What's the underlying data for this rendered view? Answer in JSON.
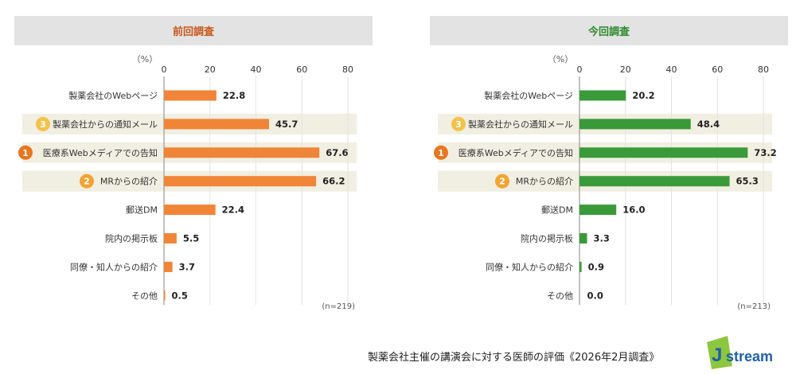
{
  "footer": "製薬会社主催の講演会に対する医師の評価《2026年2月調査》",
  "logo_text": "Jstream",
  "colors": {
    "previous": "#f08537",
    "current": "#3a9a3a",
    "rank1": "#e8761e",
    "rank2": "#f2a332",
    "rank3": "#f3c24a",
    "highlight": "#f1efe2"
  },
  "chart_data": [
    {
      "type": "bar",
      "orientation": "horizontal",
      "title": "前回調査",
      "unit": "（%）",
      "n": "(n=219)",
      "xlim": [
        0,
        80
      ],
      "xticks": [
        "0",
        "20",
        "40",
        "60",
        "80"
      ],
      "grid": true,
      "categories": [
        "製薬会社のWebページ",
        "製薬会社からの通知メール",
        "医療系Webメディアでの告知",
        "MRからの紹介",
        "郵送DM",
        "院内の掲示板",
        "同僚・知人からの紹介",
        "その他"
      ],
      "ranks": [
        "",
        "3",
        "1",
        "2",
        "",
        "",
        "",
        ""
      ],
      "values": [
        22.8,
        45.7,
        67.6,
        66.2,
        22.4,
        5.5,
        3.7,
        0.5
      ],
      "value_labels": [
        "22.8",
        "45.7",
        "67.6",
        "66.2",
        "22.4",
        "5.5",
        "3.7",
        "0.5"
      ]
    },
    {
      "type": "bar",
      "orientation": "horizontal",
      "title": "今回調査",
      "unit": "（%）",
      "n": "(n=213)",
      "xlim": [
        0,
        80
      ],
      "xticks": [
        "0",
        "20",
        "40",
        "60",
        "80"
      ],
      "grid": true,
      "categories": [
        "製薬会社のWebページ",
        "製薬会社からの通知メール",
        "医療系Webメディアでの告知",
        "MRからの紹介",
        "郵送DM",
        "院内の掲示板",
        "同僚・知人からの紹介",
        "その他"
      ],
      "ranks": [
        "",
        "3",
        "1",
        "2",
        "",
        "",
        "",
        ""
      ],
      "values": [
        20.2,
        48.4,
        73.2,
        65.3,
        16.0,
        3.3,
        0.9,
        0.0
      ],
      "value_labels": [
        "20.2",
        "48.4",
        "73.2",
        "65.3",
        "16.0",
        "3.3",
        "0.9",
        "0.0"
      ]
    }
  ]
}
